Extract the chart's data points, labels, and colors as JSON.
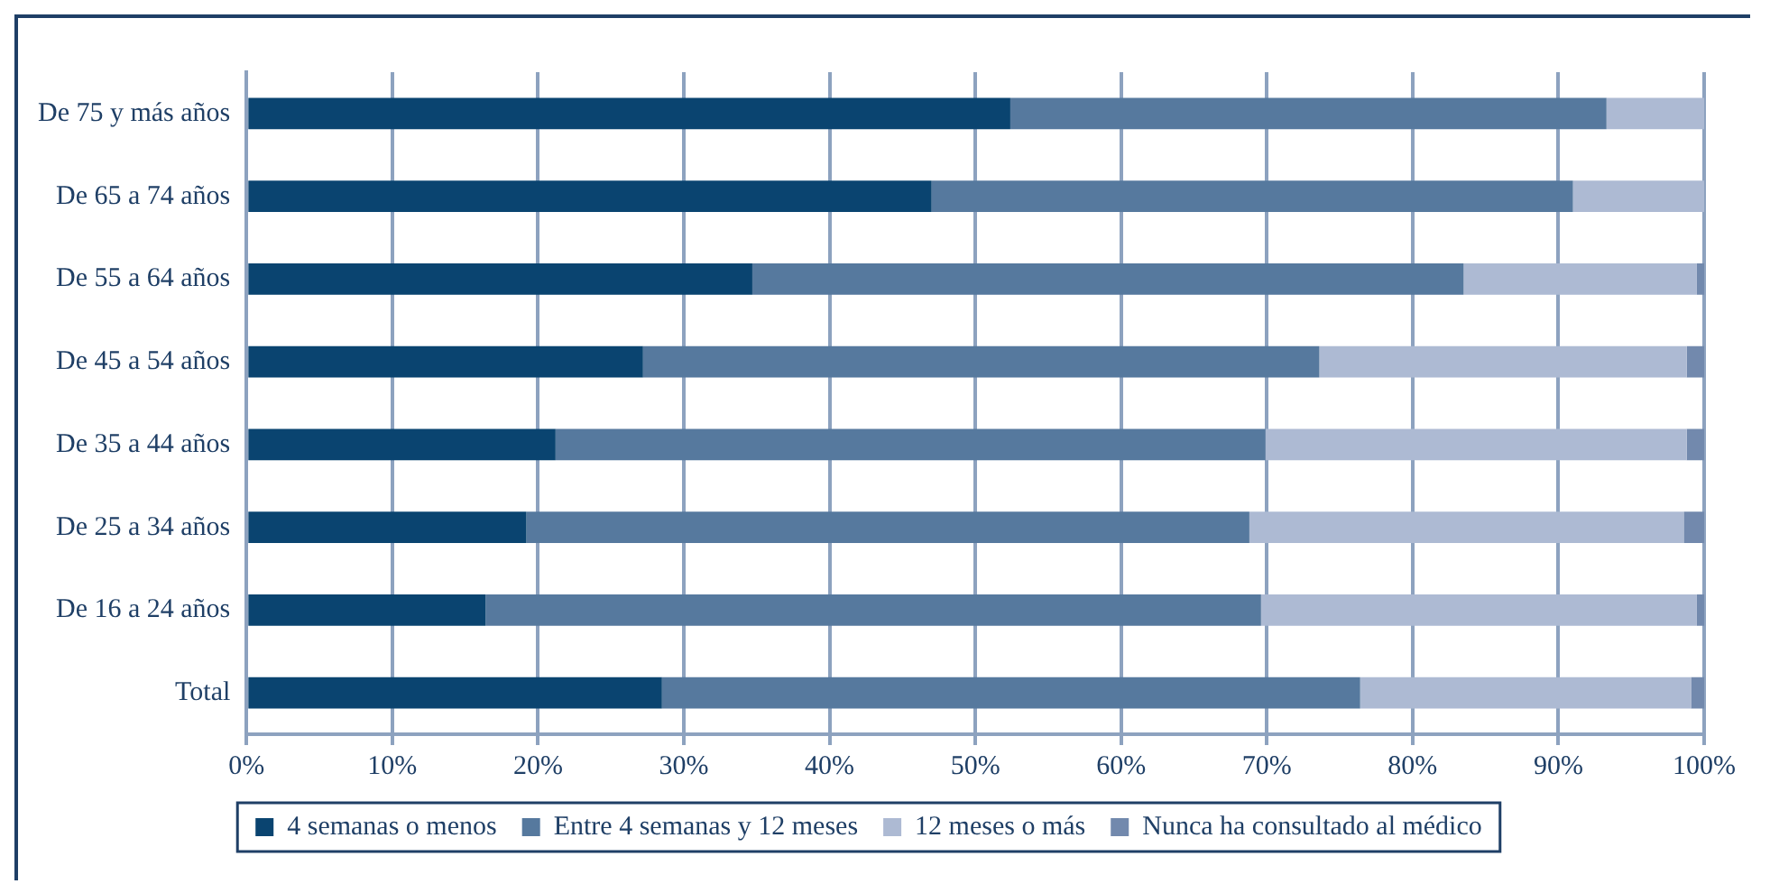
{
  "chart_data": {
    "type": "bar",
    "orientation": "horizontal",
    "stacked": true,
    "categories": [
      "De 75 y más años",
      "De 65 a 74 años",
      "De 55 a 64 años",
      "De 45 a 54 años",
      "De 35 a 44 años",
      "De 25 a 34 años",
      "De 16 a 24 años",
      "Total"
    ],
    "series": [
      {
        "name": "4 semanas o menos",
        "color": "#0a4470",
        "values": [
          52.4,
          47.0,
          34.7,
          27.2,
          21.2,
          19.2,
          16.4,
          28.5
        ]
      },
      {
        "name": "Entre 4 semanas y 12 meses",
        "color": "#56799e",
        "values": [
          40.9,
          44.0,
          48.8,
          46.4,
          48.7,
          49.6,
          53.2,
          47.9
        ]
      },
      {
        "name": "12 meses o más",
        "color": "#adbad3",
        "values": [
          6.7,
          9.0,
          16.0,
          25.2,
          28.9,
          29.8,
          29.9,
          22.7
        ]
      },
      {
        "name": "Nunca ha consultado al médico",
        "color": "#7289ad",
        "values": [
          0,
          0,
          0.5,
          1.2,
          1.2,
          1.4,
          0.5,
          0.9
        ]
      }
    ],
    "xlim": [
      0,
      100
    ],
    "xticks": [
      {
        "value": 0,
        "label": "0%"
      },
      {
        "value": 10,
        "label": "10%"
      },
      {
        "value": 20,
        "label": "20%"
      },
      {
        "value": 30,
        "label": "30%"
      },
      {
        "value": 40,
        "label": "40%"
      },
      {
        "value": 50,
        "label": "50%"
      },
      {
        "value": 60,
        "label": "60%"
      },
      {
        "value": 70,
        "label": "70%"
      },
      {
        "value": 80,
        "label": "80%"
      },
      {
        "value": 90,
        "label": "90%"
      },
      {
        "value": 100,
        "label": "100%"
      }
    ],
    "grid": "x",
    "legend": "bottom"
  }
}
